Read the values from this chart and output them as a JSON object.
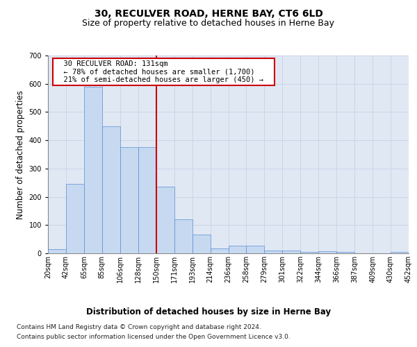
{
  "title": "30, RECULVER ROAD, HERNE BAY, CT6 6LD",
  "subtitle": "Size of property relative to detached houses in Herne Bay",
  "xlabel": "Distribution of detached houses by size in Herne Bay",
  "ylabel": "Number of detached properties",
  "bar_color": "#c6d9f0",
  "bar_edge_color": "#5b8dd4",
  "bar_heights": [
    15,
    245,
    590,
    450,
    375,
    375,
    235,
    120,
    67,
    18,
    28,
    28,
    10,
    10,
    5,
    8,
    5,
    0,
    0,
    5
  ],
  "x_labels": [
    "20sqm",
    "42sqm",
    "65sqm",
    "85sqm",
    "106sqm",
    "128sqm",
    "150sqm",
    "171sqm",
    "193sqm",
    "214sqm",
    "236sqm",
    "258sqm",
    "279sqm",
    "301sqm",
    "322sqm",
    "344sqm",
    "366sqm",
    "387sqm",
    "409sqm",
    "430sqm",
    "452sqm"
  ],
  "vline_x": 5.5,
  "vline_color": "#cc0000",
  "annotation_text": "  30 RECULVER ROAD: 131sqm  \n  ← 78% of detached houses are smaller (1,700)  \n  21% of semi-detached houses are larger (450) →  ",
  "annotation_box_color": "#ffffff",
  "annotation_box_edge": "#cc0000",
  "ylim": [
    0,
    700
  ],
  "yticks": [
    0,
    100,
    200,
    300,
    400,
    500,
    600,
    700
  ],
  "grid_color": "#ccd5e8",
  "background_color": "#e0e8f4",
  "footer_line1": "Contains HM Land Registry data © Crown copyright and database right 2024.",
  "footer_line2": "Contains public sector information licensed under the Open Government Licence v3.0.",
  "title_fontsize": 10,
  "subtitle_fontsize": 9,
  "axis_label_fontsize": 8.5,
  "tick_fontsize": 7,
  "annotation_fontsize": 7.5,
  "footer_fontsize": 6.5
}
